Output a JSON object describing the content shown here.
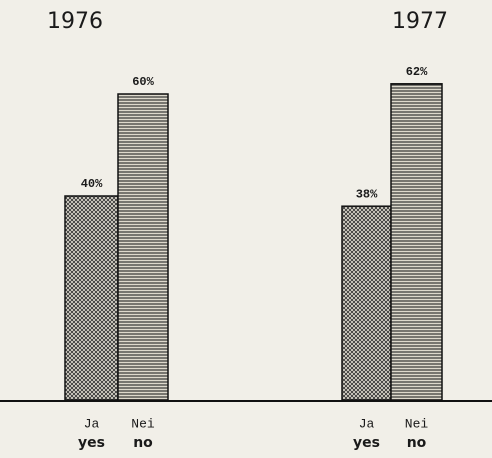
{
  "chart_data": [
    {
      "type": "bar",
      "title": "1976",
      "categories": [
        "Ja",
        "Nei"
      ],
      "category_translations": [
        "yes",
        "no"
      ],
      "values": [
        40,
        60
      ],
      "value_labels": [
        "40%",
        "60%"
      ]
    },
    {
      "type": "bar",
      "title": "1977",
      "categories": [
        "Ja",
        "Nei"
      ],
      "category_translations": [
        "yes",
        "no"
      ],
      "values": [
        38,
        62
      ],
      "value_labels": [
        "38%",
        "62%"
      ]
    }
  ]
}
